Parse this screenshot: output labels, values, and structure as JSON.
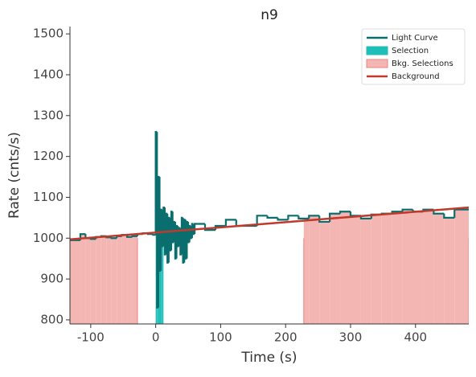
{
  "chart_data": {
    "type": "step",
    "title": "n9",
    "xlabel": "Time (s)",
    "ylabel": "Rate (cnts/s)",
    "xlim": [
      -132,
      482
    ],
    "ylim": [
      790,
      1518
    ],
    "xticks": [
      -100,
      0,
      100,
      200,
      300,
      400
    ],
    "yticks": [
      800,
      900,
      1000,
      1100,
      1200,
      1300,
      1400,
      1500
    ],
    "legend": "upper right",
    "series": [
      {
        "name": "Light Curve",
        "color": "#0b6e6e",
        "x": [
          -132,
          -124,
          -116,
          -108,
          -100,
          -92,
          -84,
          -76,
          -68,
          -60,
          -52,
          -44,
          -36,
          -28,
          -20,
          -12,
          -4,
          0,
          2,
          4,
          6,
          8,
          10,
          12,
          14,
          16,
          18,
          20,
          22,
          24,
          26,
          28,
          30,
          32,
          34,
          36,
          38,
          40,
          42,
          44,
          46,
          48,
          50,
          52,
          54,
          56,
          58,
          60,
          76,
          92,
          108,
          124,
          140,
          156,
          172,
          188,
          204,
          220,
          236,
          252,
          268,
          284,
          300,
          316,
          332,
          348,
          364,
          380,
          396,
          412,
          428,
          444,
          460
        ],
        "values": [
          995,
          995,
          1010,
          1000,
          998,
          1003,
          1005,
          1002,
          1000,
          1005,
          1008,
          1003,
          1005,
          1010,
          1012,
          1010,
          1008,
          1260,
          830,
          1150,
          920,
          1070,
          980,
          1075,
          960,
          1060,
          940,
          1050,
          970,
          1065,
          990,
          1040,
          950,
          1030,
          980,
          1025,
          960,
          1050,
          940,
          1045,
          950,
          1040,
          990,
          1030,
          1000,
          1035,
          1010,
          1035,
          1020,
          1030,
          1045,
          1030,
          1030,
          1055,
          1050,
          1045,
          1055,
          1048,
          1055,
          1040,
          1060,
          1065,
          1055,
          1048,
          1058,
          1060,
          1065,
          1070,
          1065,
          1070,
          1060,
          1050,
          1070
        ]
      }
    ],
    "selection": {
      "name": "Selection",
      "color": "#1fbfb8",
      "range": [
        0,
        12
      ]
    },
    "bkg_selections": {
      "name": "Bkg. Selections",
      "color": "#f4b6b2",
      "ranges": [
        [
          -132,
          -28
        ],
        [
          228,
          482
        ]
      ]
    },
    "background": {
      "name": "Background",
      "color": "#c0392b",
      "x": [
        -132,
        482
      ],
      "values": [
        997,
        1075
      ]
    }
  }
}
